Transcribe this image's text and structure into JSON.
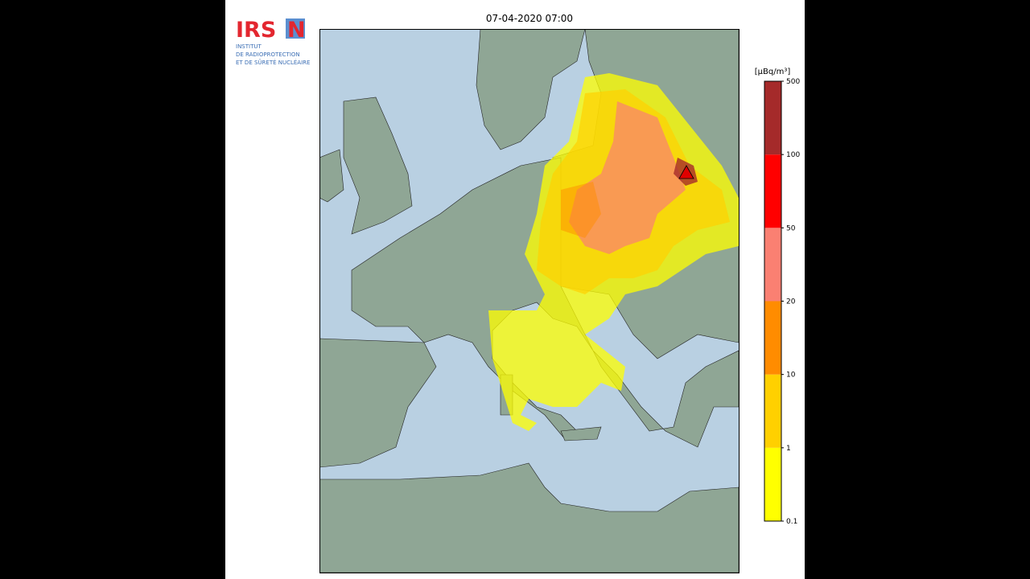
{
  "header": {
    "logo": {
      "red": "IRS",
      "blue": "N"
    },
    "institute": [
      "INSTITUT",
      "DE RADIOPROTECTION",
      "ET DE SÛRETÉ NUCLÉAIRE"
    ]
  },
  "map": {
    "title": "07-04-2020 07:00"
  },
  "colorbar": {
    "unit": "[µBq/m³]",
    "ticks": [
      0.1,
      1,
      10,
      20,
      50,
      100,
      500
    ],
    "colors": [
      "#ffff00",
      "#ffd000",
      "#ff8c00",
      "#fa8072",
      "#ff0000",
      "#a52a2a"
    ]
  }
}
